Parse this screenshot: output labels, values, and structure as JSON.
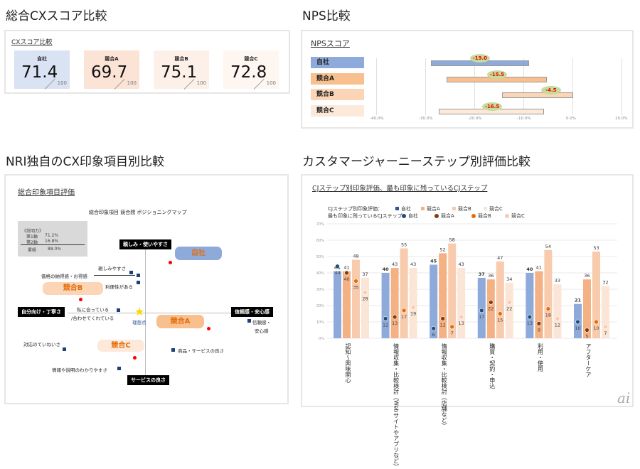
{
  "cx": {
    "title": "総合CXスコア比較",
    "subtitle": "CXスコア比較",
    "denominator": "100",
    "cards": [
      {
        "label": "自社",
        "value": "71.4",
        "color": "#dae3f3"
      },
      {
        "label": "競合A",
        "value": "69.7",
        "color": "#fbe3d6"
      },
      {
        "label": "競合B",
        "value": "75.1",
        "color": "#fdf0e8"
      },
      {
        "label": "競合C",
        "value": "72.8",
        "color": "#fef6f1"
      }
    ]
  },
  "nps": {
    "title": "NPS比較",
    "subtitle": "NPSスコア",
    "ticks": [
      "-40.0%",
      "-30.0%",
      "-20.0%",
      "-10.0%",
      "0.0%",
      "10.0%"
    ],
    "tick_values": [
      -40,
      -30,
      -20,
      -10,
      0,
      10
    ],
    "rows": [
      {
        "label": "自社",
        "score": "-19.0",
        "range": [
          -28.8,
          -8.9
        ],
        "color": "#8eaadb"
      },
      {
        "label": "競合A",
        "score": "-15.5",
        "range": [
          -25.6,
          -5.2
        ],
        "color": "#f8c08f"
      },
      {
        "label": "競合B",
        "score": "-4.5",
        "range": [
          -14.3,
          0.2
        ],
        "color": "#fbd5b5"
      },
      {
        "label": "競合C",
        "score": "-16.5",
        "range": [
          -27.3,
          -5.8
        ],
        "color": "#fde9d9"
      }
    ]
  },
  "map": {
    "title": "NRI独自のCX印象項目別比較",
    "subtitle": "総合印象項目評価",
    "chart_title": "総合印象項目 競合間 ポジショニングマップ",
    "explain": {
      "head": "《説明力》",
      "axis1": "第1軸",
      "axis1_val": "71.2%",
      "axis2": "第2軸",
      "axis2_val": "16.8%",
      "total": "累積",
      "total_val": "88.0%"
    },
    "axes": {
      "top": "親しみ・使いやすさ",
      "left": "自分向け・丁寧さ",
      "right": "信頼感・安心感",
      "bottom": "サービスの良さ"
    },
    "companies": {
      "self": "自社",
      "a": "競合A",
      "b": "競合B",
      "c": "競合C"
    },
    "items": {
      "i1": "親しみやすさ",
      "i2": "価格の納得感・お得感",
      "i3": "利便性がある",
      "i4": "私に合っている",
      "i4b": "/合わせてくれている",
      "ideal": "理想点",
      "i5a": "信頼感・",
      "i5b": "安心感",
      "i6": "対応のていねいさ",
      "i7": "商品・サービスの良さ",
      "i8": "情報や説明のわかりやすさ"
    }
  },
  "cj": {
    "title": "カスタマージャーニーステップ別評価比較",
    "subtitle": "CJステップ別印象評価、最も印象に残っているCJステップ",
    "legend1": "CJステップ別印象評価：",
    "legend2": "最も印象に残っているCJステップ：",
    "series_names": [
      "自社",
      "競合A",
      "競合B",
      "競合C"
    ]
  },
  "chart_data": {
    "type": "bar",
    "ylim": [
      0,
      70
    ],
    "yticks": [
      "0%",
      "10%",
      "20%",
      "30%",
      "40%",
      "50%",
      "60%",
      "70%"
    ],
    "categories": [
      "認知～興味関心",
      "情報収集・比較検討（Webサイトやアプリなど）",
      "情報収集・比較検討（店舗など）",
      "購買・契約・申込",
      "利用・使用",
      "アフターケア"
    ],
    "series": [
      {
        "name": "自社",
        "values": [
          41,
          40,
          45,
          37,
          40,
          21
        ],
        "color": "#8eaadb"
      },
      {
        "name": "競合A",
        "values": [
          41,
          43,
          52,
          36,
          41,
          36
        ],
        "color": "#f4b183"
      },
      {
        "name": "競合B",
        "values": [
          48,
          55,
          58,
          47,
          54,
          53
        ],
        "color": "#f8cbad"
      },
      {
        "name": "競合C",
        "values": [
          37,
          43,
          43,
          34,
          33,
          32
        ],
        "color": "#fbe5d6"
      }
    ],
    "dots": [
      {
        "name": "自社",
        "values": [
          44,
          12,
          6,
          17,
          13,
          10
        ],
        "color": "#1f4e79"
      },
      {
        "name": "競合A",
        "values": [
          40,
          13,
          12,
          22,
          9,
          5
        ],
        "color": "#843c0c"
      },
      {
        "name": "競合B",
        "values": [
          35,
          17,
          7,
          15,
          18,
          10
        ],
        "color": "#e46c0a"
      },
      {
        "name": "競合C",
        "values": [
          28,
          19,
          13,
          22,
          12,
          7
        ],
        "color": "#f8cbad"
      }
    ]
  }
}
